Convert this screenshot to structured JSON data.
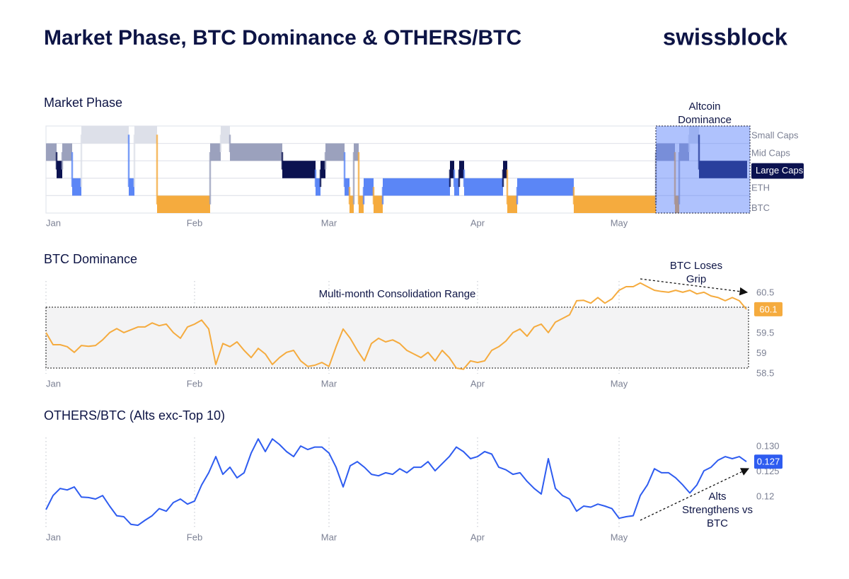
{
  "title": "Market Phase, BTC Dominance & OTHERS/BTC",
  "brand": "swissblock",
  "chart_data": [
    {
      "type": "phase",
      "title": "Market Phase",
      "levels": [
        "Small Caps",
        "Mid Caps",
        "Large Caps",
        "ETH",
        "BTC"
      ],
      "colors": [
        "#dde0e9",
        "#9ba1bd",
        "#0b1250",
        "#5b86f6",
        "#f5ab3e"
      ],
      "xlim": [
        0,
        99.5
      ],
      "xticks": [
        {
          "value": 0,
          "label": "Jan"
        },
        {
          "value": 21,
          "label": "Feb"
        },
        {
          "value": 40,
          "label": "Mar"
        },
        {
          "value": 61,
          "label": "Apr"
        },
        {
          "value": 81,
          "label": "May"
        }
      ],
      "segments": [
        {
          "start": 0,
          "end": 1.5,
          "phase": 1
        },
        {
          "start": 1.5,
          "end": 2.3,
          "phase": 2
        },
        {
          "start": 2.3,
          "end": 3.7,
          "phase": 1
        },
        {
          "start": 3.7,
          "end": 5,
          "phase": 3
        },
        {
          "start": 5,
          "end": 11.7,
          "phase": 0
        },
        {
          "start": 11.7,
          "end": 12.5,
          "phase": 3
        },
        {
          "start": 12.5,
          "end": 15.7,
          "phase": 0
        },
        {
          "start": 15.7,
          "end": 23.2,
          "phase": 4
        },
        {
          "start": 23.2,
          "end": 24.7,
          "phase": 1
        },
        {
          "start": 24.7,
          "end": 26,
          "phase": 0
        },
        {
          "start": 26,
          "end": 33.4,
          "phase": 1
        },
        {
          "start": 33.4,
          "end": 38.1,
          "phase": 2
        },
        {
          "start": 38.1,
          "end": 38.8,
          "phase": 3
        },
        {
          "start": 38.8,
          "end": 39.5,
          "phase": 2
        },
        {
          "start": 39.5,
          "end": 42.2,
          "phase": 1
        },
        {
          "start": 42.2,
          "end": 42.9,
          "phase": 3
        },
        {
          "start": 42.9,
          "end": 43.5,
          "phase": 4
        },
        {
          "start": 43.5,
          "end": 44.2,
          "phase": 1
        },
        {
          "start": 44.2,
          "end": 44.9,
          "phase": 4
        },
        {
          "start": 44.9,
          "end": 46.3,
          "phase": 3
        },
        {
          "start": 46.3,
          "end": 47.6,
          "phase": 4
        },
        {
          "start": 47.6,
          "end": 57.1,
          "phase": 3
        },
        {
          "start": 57.1,
          "end": 57.7,
          "phase": 2
        },
        {
          "start": 57.7,
          "end": 58.4,
          "phase": 3
        },
        {
          "start": 58.4,
          "end": 59.1,
          "phase": 2
        },
        {
          "start": 59.1,
          "end": 64.6,
          "phase": 3
        },
        {
          "start": 64.6,
          "end": 65.2,
          "phase": 2
        },
        {
          "start": 65.2,
          "end": 66.6,
          "phase": 4
        },
        {
          "start": 66.6,
          "end": 74.6,
          "phase": 3
        },
        {
          "start": 74.6,
          "end": 86.2,
          "phase": 4
        },
        {
          "start": 86.2,
          "end": 88.9,
          "phase": 1
        },
        {
          "start": 88.9,
          "end": 89.5,
          "phase": 4
        },
        {
          "start": 89.5,
          "end": 90.9,
          "phase": 1
        },
        {
          "start": 90.9,
          "end": 92.3,
          "phase": 0
        },
        {
          "start": 92.3,
          "end": 99.1,
          "phase": 2
        }
      ],
      "highlight": {
        "label": "Altcoin Dominance",
        "xlim": [
          86.2,
          99.5
        ],
        "color": "#4d78fb"
      }
    },
    {
      "type": "line",
      "title": "BTC Dominance",
      "color": "#f5ab3e",
      "xlim": [
        0,
        99.5
      ],
      "xticks": [
        {
          "value": 0,
          "label": "Jan"
        },
        {
          "value": 21,
          "label": "Feb"
        },
        {
          "value": 40,
          "label": "Mar"
        },
        {
          "value": 61,
          "label": "Apr"
        },
        {
          "value": 81,
          "label": "May"
        }
      ],
      "ylim": [
        58.5,
        60.8
      ],
      "yticks": [
        58.5,
        59,
        59.5,
        60.5
      ],
      "grid": true,
      "x": [
        0,
        1,
        2,
        3,
        4,
        5,
        6,
        7,
        8,
        9,
        10,
        11,
        12,
        13,
        14,
        15,
        16,
        17,
        18,
        19,
        20,
        21,
        22,
        23,
        24,
        25,
        26,
        27,
        28,
        29,
        30,
        31,
        32,
        33,
        34,
        35,
        36,
        37,
        38,
        39,
        40,
        41,
        42,
        43,
        44,
        45,
        46,
        47,
        48,
        49,
        50,
        51,
        52,
        53,
        54,
        55,
        56,
        57,
        58,
        59,
        60,
        61,
        62,
        63,
        64,
        65,
        66,
        67,
        68,
        69,
        70,
        71,
        72,
        73,
        74,
        75,
        76,
        77,
        78,
        79,
        80,
        81,
        82,
        83,
        84,
        85,
        86,
        87,
        88,
        89,
        90,
        91,
        92,
        93,
        94,
        95,
        96,
        97,
        98,
        99
      ],
      "values": [
        59.52,
        59.22,
        59.22,
        59.17,
        59.03,
        59.2,
        59.18,
        59.2,
        59.34,
        59.52,
        59.62,
        59.52,
        59.59,
        59.66,
        59.66,
        59.76,
        59.69,
        59.73,
        59.52,
        59.38,
        59.66,
        59.73,
        59.83,
        59.61,
        58.73,
        59.25,
        59.17,
        59.29,
        59.08,
        58.9,
        59.13,
        58.99,
        58.73,
        58.9,
        59.03,
        59.08,
        58.82,
        58.68,
        58.71,
        58.78,
        58.68,
        59.17,
        59.61,
        59.38,
        59.08,
        58.82,
        59.25,
        59.38,
        59.29,
        59.34,
        59.25,
        59.08,
        58.99,
        58.9,
        59.03,
        58.82,
        59.08,
        58.9,
        58.64,
        58.61,
        58.82,
        58.78,
        58.82,
        59.08,
        59.17,
        59.31,
        59.52,
        59.61,
        59.43,
        59.66,
        59.73,
        59.52,
        59.78,
        59.87,
        59.96,
        60.31,
        60.32,
        60.25,
        60.39,
        60.25,
        60.36,
        60.57,
        60.66,
        60.66,
        60.75,
        60.66,
        60.57,
        60.54,
        60.52,
        60.57,
        60.52,
        60.57,
        60.48,
        60.52,
        60.43,
        60.39,
        60.31,
        60.39,
        60.31,
        60.1
      ],
      "range_box": {
        "label": "Multi-month Consolidation Range",
        "xlim": [
          0,
          99.3
        ],
        "ylim": [
          58.64,
          60.15
        ]
      },
      "annotation": "BTC Loses Grip"
    },
    {
      "type": "line",
      "title": "OTHERS/BTC (Alts exc-Top 10)",
      "color": "#2e5cf0",
      "xlim": [
        0,
        99.5
      ],
      "xticks": [
        {
          "value": 0,
          "label": "Jan"
        },
        {
          "value": 21,
          "label": "Feb"
        },
        {
          "value": 40,
          "label": "Mar"
        },
        {
          "value": 61,
          "label": "Apr"
        },
        {
          "value": 81,
          "label": "May"
        }
      ],
      "ylim": [
        0.114,
        0.1318
      ],
      "yticks": [
        0.12,
        0.125,
        {
          "value": 0.13,
          "label": "0.130"
        }
      ],
      "grid": true,
      "x": [
        0,
        1,
        2,
        3,
        4,
        5,
        6,
        7,
        8,
        9,
        10,
        11,
        12,
        13,
        14,
        15,
        16,
        17,
        18,
        19,
        20,
        21,
        22,
        23,
        24,
        25,
        26,
        27,
        28,
        29,
        30,
        31,
        32,
        33,
        34,
        35,
        36,
        37,
        38,
        39,
        40,
        41,
        42,
        43,
        44,
        45,
        46,
        47,
        48,
        49,
        50,
        51,
        52,
        53,
        54,
        55,
        56,
        57,
        58,
        59,
        60,
        61,
        62,
        63,
        64,
        65,
        66,
        67,
        68,
        69,
        70,
        71,
        72,
        73,
        74,
        75,
        76,
        77,
        78,
        79,
        80,
        81,
        82,
        83,
        84,
        85,
        86,
        87,
        88,
        89,
        90,
        91,
        92,
        93,
        94,
        95,
        96,
        97,
        98,
        99
      ],
      "values": [
        0.1175,
        0.1203,
        0.1217,
        0.1214,
        0.122,
        0.12,
        0.1199,
        0.1196,
        0.1203,
        0.1182,
        0.1163,
        0.1161,
        0.1146,
        0.1144,
        0.1154,
        0.1163,
        0.1177,
        0.1172,
        0.1189,
        0.1196,
        0.1186,
        0.1192,
        0.1224,
        0.1248,
        0.128,
        0.1245,
        0.1259,
        0.1238,
        0.1248,
        0.1287,
        0.1315,
        0.129,
        0.1315,
        0.1304,
        0.129,
        0.128,
        0.1301,
        0.1294,
        0.1299,
        0.1299,
        0.1287,
        0.1259,
        0.122,
        0.1262,
        0.127,
        0.1259,
        0.1245,
        0.1242,
        0.1248,
        0.1245,
        0.1256,
        0.1248,
        0.1259,
        0.1259,
        0.127,
        0.1252,
        0.1266,
        0.128,
        0.1299,
        0.129,
        0.1276,
        0.128,
        0.129,
        0.1285,
        0.1259,
        0.1254,
        0.1245,
        0.1248,
        0.1231,
        0.1217,
        0.1206,
        0.1276,
        0.1217,
        0.1203,
        0.1196,
        0.1172,
        0.1182,
        0.118,
        0.1186,
        0.1182,
        0.1177,
        0.1158,
        0.1161,
        0.1163,
        0.1203,
        0.1224,
        0.1256,
        0.1248,
        0.1248,
        0.1238,
        0.1224,
        0.1208,
        0.1224,
        0.1252,
        0.1259,
        0.1273,
        0.128,
        0.1276,
        0.128,
        0.127
      ],
      "annotation": "Alts Strengthens vs BTC"
    }
  ]
}
